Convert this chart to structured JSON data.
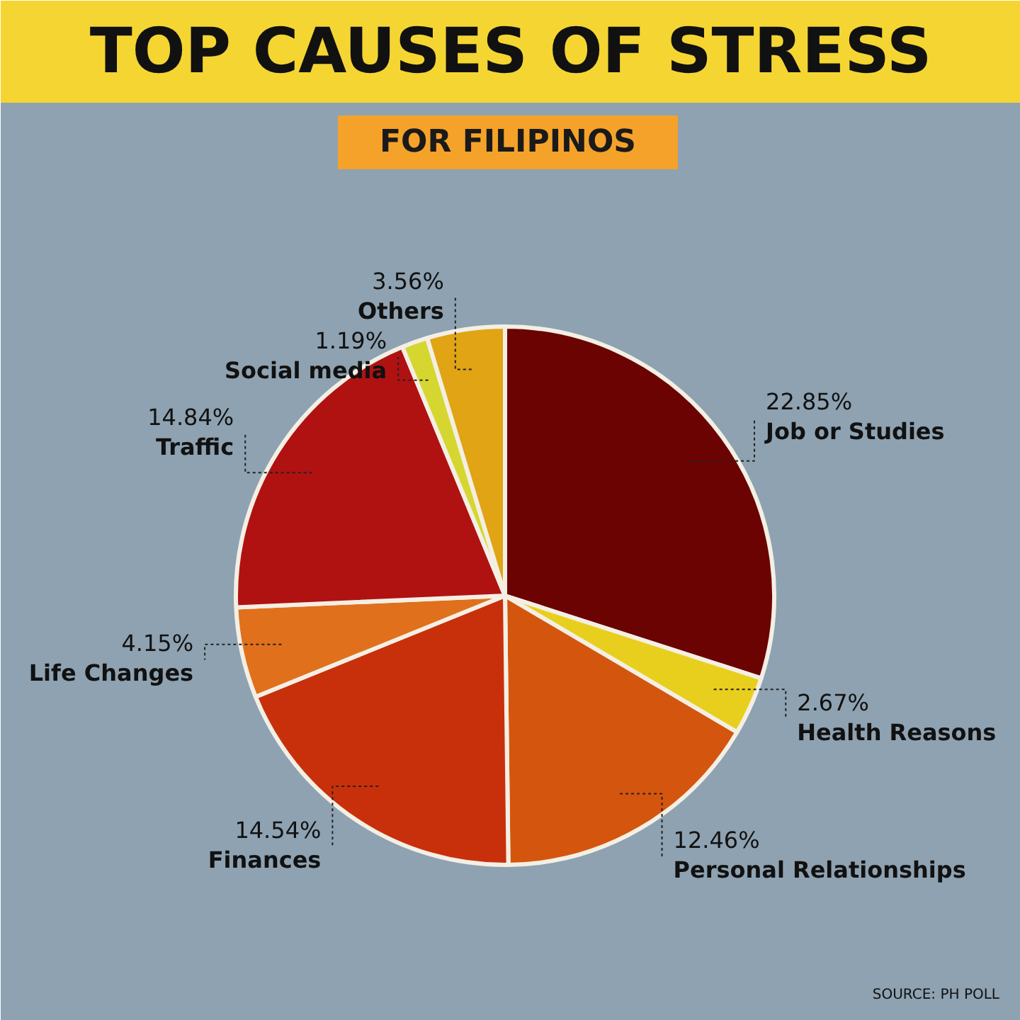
{
  "chart_data": {
    "type": "pie",
    "title": "TOP CAUSES OF STRESS",
    "subtitle": "FOR FILIPINOS",
    "categories": [
      "Job or Studies",
      "Health Reasons",
      "Personal Relationships",
      "Finances",
      "Life Changes",
      "Traffic",
      "Social media",
      "Others"
    ],
    "values": [
      22.85,
      2.67,
      12.46,
      14.54,
      4.15,
      14.84,
      1.19,
      3.56
    ],
    "value_labels": [
      "22.85%",
      "2.67%",
      "12.46%",
      "14.54%",
      "4.15%",
      "14.84%",
      "1.19%",
      "3.56%"
    ],
    "colors": [
      "#6b0303",
      "#e8cf1e",
      "#d4560e",
      "#c8300c",
      "#e0701c",
      "#b01212",
      "#d6d630",
      "#e0a414"
    ],
    "annotations": [
      "SOURCE: PH POLL"
    ]
  }
}
